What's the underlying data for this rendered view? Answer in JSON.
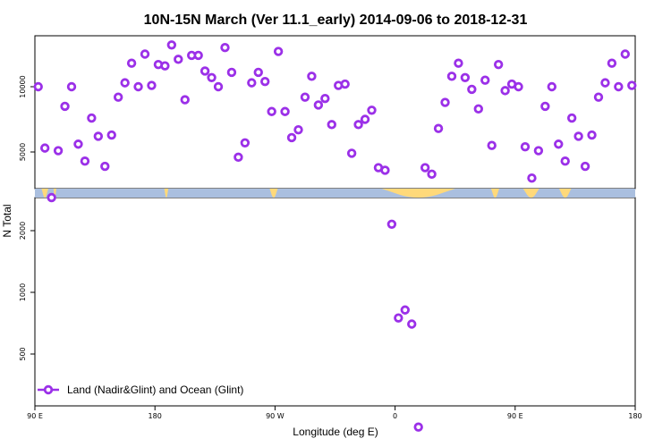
{
  "chart_data": {
    "type": "scatter",
    "title": "10N-15N March (Ver 11.1_early)   2014-09-06 to 2018-12-31",
    "xlabel": "Longitude (deg E)",
    "ylabel": "N Total",
    "x_ticks": [
      {
        "value": 90,
        "label": "90 E"
      },
      {
        "value": 180,
        "label": "180"
      },
      {
        "value": 270,
        "label": "90 W"
      },
      {
        "value": 360,
        "label": "0"
      },
      {
        "value": 450,
        "label": "90 E"
      },
      {
        "value": 540,
        "label": "180"
      }
    ],
    "xlim": [
      90,
      540
    ],
    "y_scale": "two-panel (upper: linear, lower: log)",
    "y_ticks": [
      {
        "value": 500,
        "label": "500"
      },
      {
        "value": 1000,
        "label": "1000"
      },
      {
        "value": 2000,
        "label": "2000"
      },
      {
        "value": 5000,
        "label": "5000"
      },
      {
        "value": 10000,
        "label": "10000"
      }
    ],
    "legend": {
      "label": "Land (Nadir&Glint) and Ocean (Glint)",
      "placement": "bottom-left"
    },
    "series": [
      {
        "name": "Land (Nadir&Glint) and Ocean (Glint)",
        "color": "#9b30e8",
        "x": [
          92.5,
          97.5,
          102.5,
          107.5,
          112.5,
          117.5,
          122.5,
          127.5,
          132.5,
          137.5,
          142.5,
          147.5,
          152.5,
          157.5,
          162.5,
          167.5,
          172.5,
          177.5,
          182.5,
          187.5,
          192.5,
          197.5,
          202.5,
          207.5,
          212.5,
          217.5,
          222.5,
          227.5,
          232.5,
          237.5,
          242.5,
          247.5,
          252.5,
          257.5,
          262.5,
          267.5,
          272.5,
          277.5,
          282.5,
          287.5,
          292.5,
          297.5,
          302.5,
          307.5,
          312.5,
          317.5,
          322.5,
          327.5,
          332.5,
          337.5,
          342.5,
          347.5,
          352.5,
          357.5,
          362.5,
          367.5,
          372.5,
          377.5,
          382.5,
          387.5,
          392.5,
          397.5,
          402.5,
          407.5,
          412.5,
          417.5,
          422.5,
          427.5,
          432.5,
          437.5,
          442.5,
          447.5,
          452.5,
          457.5,
          462.5,
          467.5,
          472.5,
          477.5,
          482.5,
          487.5,
          492.5,
          497.5,
          502.5,
          507.5,
          512.5,
          517.5,
          522.5,
          527.5,
          532.5,
          537.5
        ],
        "y": [
          10000,
          5300,
          2900,
          5100,
          8500,
          10000,
          5600,
          4300,
          7600,
          6200,
          3900,
          6300,
          9200,
          10300,
          11800,
          10000,
          12500,
          10100,
          11700,
          11600,
          13200,
          12100,
          9000,
          12400,
          12400,
          11200,
          10700,
          10000,
          13000,
          11100,
          4600,
          5700,
          10300,
          11100,
          10400,
          8100,
          12700,
          8100,
          6100,
          6700,
          9200,
          10800,
          8600,
          9100,
          7100,
          10100,
          10200,
          4900,
          7100,
          7500,
          8200,
          3800,
          3600,
          2150,
          750,
          820,
          700,
          220,
          3800,
          3300,
          6800,
          8800,
          10800,
          11800,
          10700,
          9800,
          8300,
          10500,
          5500,
          11700,
          9700,
          10200,
          10000,
          5400,
          3000,
          5100,
          8500,
          10000,
          5600,
          4300,
          7600,
          6200,
          3900,
          6300,
          9200,
          10300,
          11800,
          10000,
          12500,
          10100
        ]
      }
    ],
    "band": {
      "description_colors": {
        "ocean": "#aabfdf",
        "land": "#ffd97a"
      },
      "land_ranges": [
        [
          95,
          100
        ],
        [
          104,
          106
        ],
        [
          187,
          190
        ],
        [
          266,
          272
        ],
        [
          350,
          405
        ],
        [
          432,
          438
        ],
        [
          456,
          468
        ],
        [
          483,
          492
        ]
      ]
    }
  }
}
